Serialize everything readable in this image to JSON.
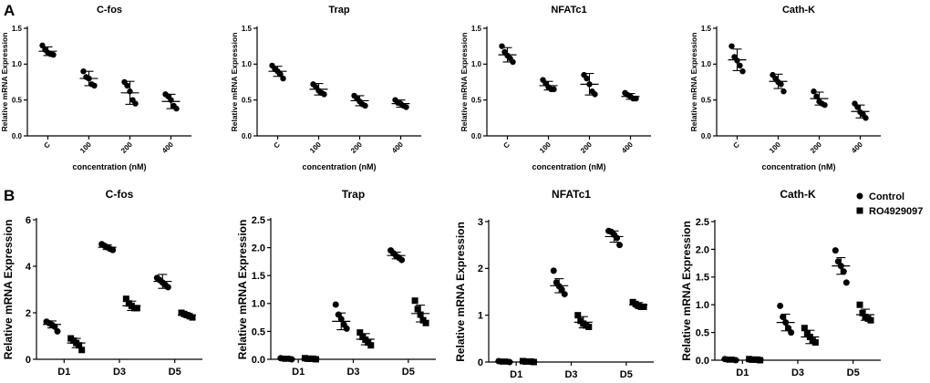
{
  "panels": [
    {
      "label": "A"
    },
    {
      "label": "B"
    }
  ],
  "legend": {
    "entries": [
      {
        "label": "Control",
        "marker": "circle"
      },
      {
        "label": "RO4929097",
        "marker": "square"
      }
    ]
  },
  "chart_data": [
    {
      "type": "scatter",
      "panel": "A",
      "title": "C-fos",
      "ylabel": "Relative mRNA Expression",
      "xlabel": "concentration (nM)",
      "categories": [
        "C",
        "100",
        "200",
        "400"
      ],
      "ylim": [
        0,
        1.5
      ],
      "yticks": [
        0,
        0.5,
        1.0,
        1.5
      ],
      "ytick_labels": [
        "0.0",
        "0.5",
        "1.0",
        "1.5"
      ],
      "series": [
        {
          "name": "",
          "marker": "circle",
          "mean": [
            1.18,
            0.8,
            0.6,
            0.48
          ],
          "err": [
            0.06,
            0.1,
            0.16,
            0.1
          ],
          "points": [
            [
              1.26,
              1.2,
              1.16,
              1.14,
              1.13
            ],
            [
              0.9,
              0.82,
              0.8,
              0.72,
              0.7
            ],
            [
              0.75,
              0.7,
              0.62,
              0.5,
              0.45
            ],
            [
              0.58,
              0.55,
              0.5,
              0.42,
              0.38
            ]
          ]
        }
      ]
    },
    {
      "type": "scatter",
      "panel": "A",
      "title": "Trap",
      "ylabel": "Relative mRNA Expression",
      "xlabel": "concentration (nM)",
      "categories": [
        "C",
        "100",
        "200",
        "400"
      ],
      "ylim": [
        0,
        1.5
      ],
      "yticks": [
        0,
        0.5,
        1.0,
        1.5
      ],
      "ytick_labels": [
        "0.0",
        "0.5",
        "1.0",
        "1.5"
      ],
      "series": [
        {
          "name": "",
          "marker": "circle",
          "mean": [
            0.9,
            0.65,
            0.49,
            0.45
          ],
          "err": [
            0.07,
            0.08,
            0.07,
            0.05
          ],
          "points": [
            [
              0.98,
              0.93,
              0.9,
              0.86,
              0.8
            ],
            [
              0.72,
              0.68,
              0.63,
              0.6,
              0.58
            ],
            [
              0.56,
              0.52,
              0.48,
              0.44,
              0.42
            ],
            [
              0.5,
              0.46,
              0.45,
              0.42,
              0.4
            ]
          ]
        }
      ]
    },
    {
      "type": "scatter",
      "panel": "A",
      "title": "NFATc1",
      "ylabel": "Relative mRNA Expression",
      "xlabel": "concentration (nM)",
      "categories": [
        "C",
        "100",
        "200",
        "400"
      ],
      "ylim": [
        0,
        1.5
      ],
      "yticks": [
        0,
        0.5,
        1.0,
        1.5
      ],
      "ytick_labels": [
        "0.0",
        "0.5",
        "1.0",
        "1.5"
      ],
      "series": [
        {
          "name": "",
          "marker": "circle",
          "mean": [
            1.13,
            0.7,
            0.72,
            0.55
          ],
          "err": [
            0.1,
            0.06,
            0.15,
            0.04
          ],
          "points": [
            [
              1.25,
              1.17,
              1.12,
              1.08,
              1.03
            ],
            [
              0.78,
              0.73,
              0.68,
              0.65,
              0.65
            ],
            [
              0.85,
              0.8,
              0.72,
              0.62,
              0.58
            ],
            [
              0.6,
              0.57,
              0.55,
              0.52,
              0.52
            ]
          ]
        }
      ]
    },
    {
      "type": "scatter",
      "panel": "A",
      "title": "Cath-K",
      "ylabel": "Relative mRNA Expression",
      "xlabel": "concentration (nM)",
      "categories": [
        "C",
        "100",
        "200",
        "400"
      ],
      "ylim": [
        0,
        1.5
      ],
      "yticks": [
        0,
        0.5,
        1.0,
        1.5
      ],
      "ytick_labels": [
        "0.0",
        "0.5",
        "1.0",
        "1.5"
      ],
      "series": [
        {
          "name": "",
          "marker": "circle",
          "mean": [
            1.06,
            0.76,
            0.52,
            0.34
          ],
          "err": [
            0.15,
            0.1,
            0.09,
            0.09
          ],
          "points": [
            [
              1.25,
              1.1,
              1.05,
              0.98,
              0.9
            ],
            [
              0.85,
              0.8,
              0.75,
              0.72,
              0.62
            ],
            [
              0.62,
              0.55,
              0.48,
              0.45,
              0.43
            ],
            [
              0.45,
              0.4,
              0.33,
              0.3,
              0.25
            ]
          ]
        }
      ]
    },
    {
      "type": "scatter",
      "panel": "B",
      "title": "C-fos",
      "ylabel": "Relative mRNA Expression",
      "xlabel": "",
      "categories": [
        "D1",
        "D3",
        "D5"
      ],
      "ylim": [
        0,
        6
      ],
      "yticks": [
        0,
        2,
        4,
        6
      ],
      "ytick_labels": [
        "0",
        "2",
        "4",
        "6"
      ],
      "series": [
        {
          "name": "Control",
          "marker": "circle",
          "mean": [
            1.5,
            4.82,
            3.35
          ],
          "err": [
            0.15,
            0.1,
            0.3
          ],
          "points": [
            [
              1.62,
              1.55,
              1.48,
              1.4,
              1.2
            ],
            [
              4.95,
              4.88,
              4.82,
              4.75,
              4.7
            ],
            [
              3.5,
              3.4,
              3.3,
              3.2,
              3.1
            ]
          ]
        },
        {
          "name": "RO4929097",
          "marker": "square",
          "mean": [
            0.7,
            2.3,
            1.9
          ],
          "err": [
            0.2,
            0.2,
            0.08
          ],
          "points": [
            [
              0.9,
              0.8,
              0.7,
              0.6,
              0.4
            ],
            [
              2.6,
              2.4,
              2.3,
              2.2,
              2.2
            ],
            [
              2.0,
              1.95,
              1.9,
              1.85,
              1.8
            ]
          ]
        }
      ]
    },
    {
      "type": "scatter",
      "panel": "B",
      "title": "Trap",
      "ylabel": "Relative mRNA Expression",
      "xlabel": "",
      "categories": [
        "D1",
        "D3",
        "D5"
      ],
      "ylim": [
        0,
        2.5
      ],
      "yticks": [
        0,
        0.5,
        1.0,
        1.5,
        2.0,
        2.5
      ],
      "ytick_labels": [
        "0.0",
        "0.5",
        "1.0",
        "1.5",
        "2.0",
        "2.5"
      ],
      "series": [
        {
          "name": "Control",
          "marker": "circle",
          "mean": [
            0.01,
            0.68,
            1.86
          ],
          "err": [
            0.01,
            0.15,
            0.06
          ],
          "points": [
            [
              0.02,
              0.01,
              0.01,
              0.01,
              0.0
            ],
            [
              0.98,
              0.8,
              0.72,
              0.62,
              0.55
            ],
            [
              1.95,
              1.9,
              1.85,
              1.82,
              1.78
            ]
          ]
        },
        {
          "name": "RO4929097",
          "marker": "square",
          "mean": [
            0.01,
            0.36,
            0.82
          ],
          "err": [
            0.01,
            0.1,
            0.15
          ],
          "points": [
            [
              0.02,
              0.01,
              0.01,
              0.01,
              0.0
            ],
            [
              0.48,
              0.4,
              0.35,
              0.3,
              0.25
            ],
            [
              1.05,
              0.9,
              0.8,
              0.7,
              0.65
            ]
          ]
        }
      ]
    },
    {
      "type": "scatter",
      "panel": "B",
      "title": "NFATc1",
      "ylabel": "Relative mRNA Expression",
      "xlabel": "",
      "categories": [
        "D1",
        "D3",
        "D5"
      ],
      "ylim": [
        0,
        3
      ],
      "yticks": [
        0,
        1,
        2,
        3
      ],
      "ytick_labels": [
        "0",
        "1",
        "2",
        "3"
      ],
      "series": [
        {
          "name": "Control",
          "marker": "circle",
          "mean": [
            0.01,
            1.63,
            2.68
          ],
          "err": [
            0.01,
            0.15,
            0.12
          ],
          "points": [
            [
              0.02,
              0.01,
              0.01,
              0.01,
              0.0
            ],
            [
              1.95,
              1.7,
              1.62,
              1.55,
              1.45
            ],
            [
              2.8,
              2.78,
              2.72,
              2.65,
              2.5
            ]
          ]
        },
        {
          "name": "RO4929097",
          "marker": "square",
          "mean": [
            0.01,
            0.85,
            1.22
          ],
          "err": [
            0.01,
            0.12,
            0.05
          ],
          "points": [
            [
              0.02,
              0.01,
              0.01,
              0.01,
              0.0
            ],
            [
              1.0,
              0.88,
              0.82,
              0.78,
              0.75
            ],
            [
              1.28,
              1.24,
              1.2,
              1.18,
              1.18
            ]
          ]
        }
      ]
    },
    {
      "type": "scatter",
      "panel": "B",
      "title": "Cath-K",
      "ylabel": "Relative mRNA Expression",
      "xlabel": "",
      "categories": [
        "D1",
        "D3",
        "D5"
      ],
      "ylim": [
        0,
        2.5
      ],
      "yticks": [
        0,
        0.5,
        1.0,
        1.5,
        2.0,
        2.5
      ],
      "ytick_labels": [
        "0.0",
        "0.5",
        "1.0",
        "1.5",
        "2.0",
        "2.5"
      ],
      "series": [
        {
          "name": "Control",
          "marker": "circle",
          "mean": [
            0.01,
            0.68,
            1.7
          ],
          "err": [
            0.01,
            0.15,
            0.15
          ],
          "points": [
            [
              0.02,
              0.01,
              0.01,
              0.01,
              0.0
            ],
            [
              0.98,
              0.78,
              0.68,
              0.58,
              0.5
            ],
            [
              1.98,
              1.78,
              1.7,
              1.6,
              1.4
            ]
          ]
        },
        {
          "name": "RO4929097",
          "marker": "square",
          "mean": [
            0.01,
            0.42,
            0.82
          ],
          "err": [
            0.01,
            0.12,
            0.1
          ],
          "points": [
            [
              0.02,
              0.01,
              0.01,
              0.01,
              0.0
            ],
            [
              0.58,
              0.48,
              0.42,
              0.35,
              0.32
            ],
            [
              1.0,
              0.85,
              0.78,
              0.75,
              0.72
            ]
          ]
        }
      ]
    }
  ]
}
